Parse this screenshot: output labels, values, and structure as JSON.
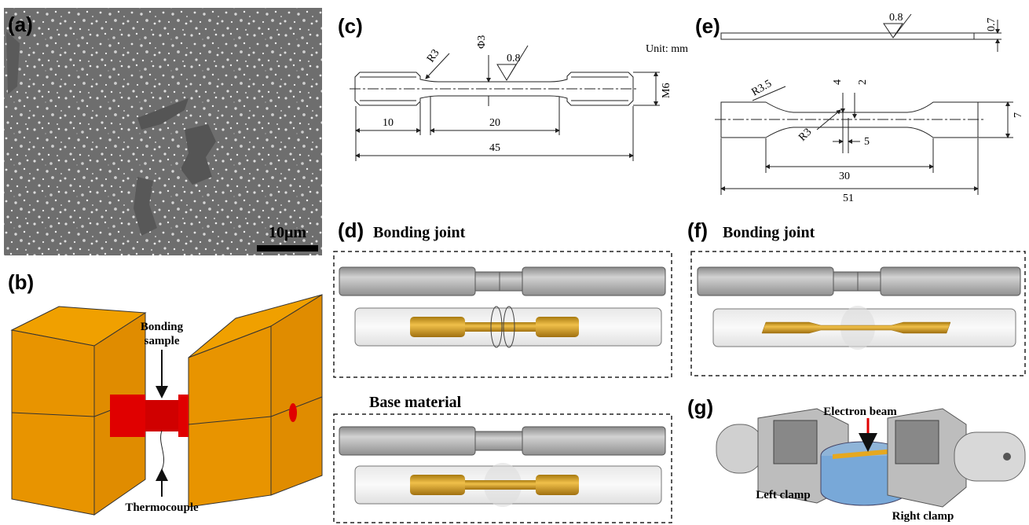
{
  "panel_a": {
    "label": "(a)",
    "scale_bar": "10μm"
  },
  "panel_b": {
    "label": "(b)",
    "bonding_sample": [
      "Bonding",
      "sample"
    ],
    "thermocouple": "Thermocouple"
  },
  "panel_c": {
    "label": "(c)",
    "unit": "Unit: mm",
    "dimensions": [
      "R3",
      "Φ3",
      "0.8",
      "M6",
      "10",
      "20",
      "45"
    ]
  },
  "panel_d": {
    "label": "(d)",
    "titles": [
      "Bonding joint",
      "Base material"
    ]
  },
  "panel_e": {
    "label": "(e)",
    "dimensions": [
      "0.8",
      "0.7",
      "R3.5",
      "4",
      "2",
      "R3",
      "5",
      "7",
      "30",
      "51"
    ]
  },
  "panel_f": {
    "label": "(f)",
    "title": "Bonding joint"
  },
  "panel_g": {
    "label": "(g)",
    "annotations": [
      "Electron beam",
      "Left clamp",
      "Right clamp"
    ]
  }
}
